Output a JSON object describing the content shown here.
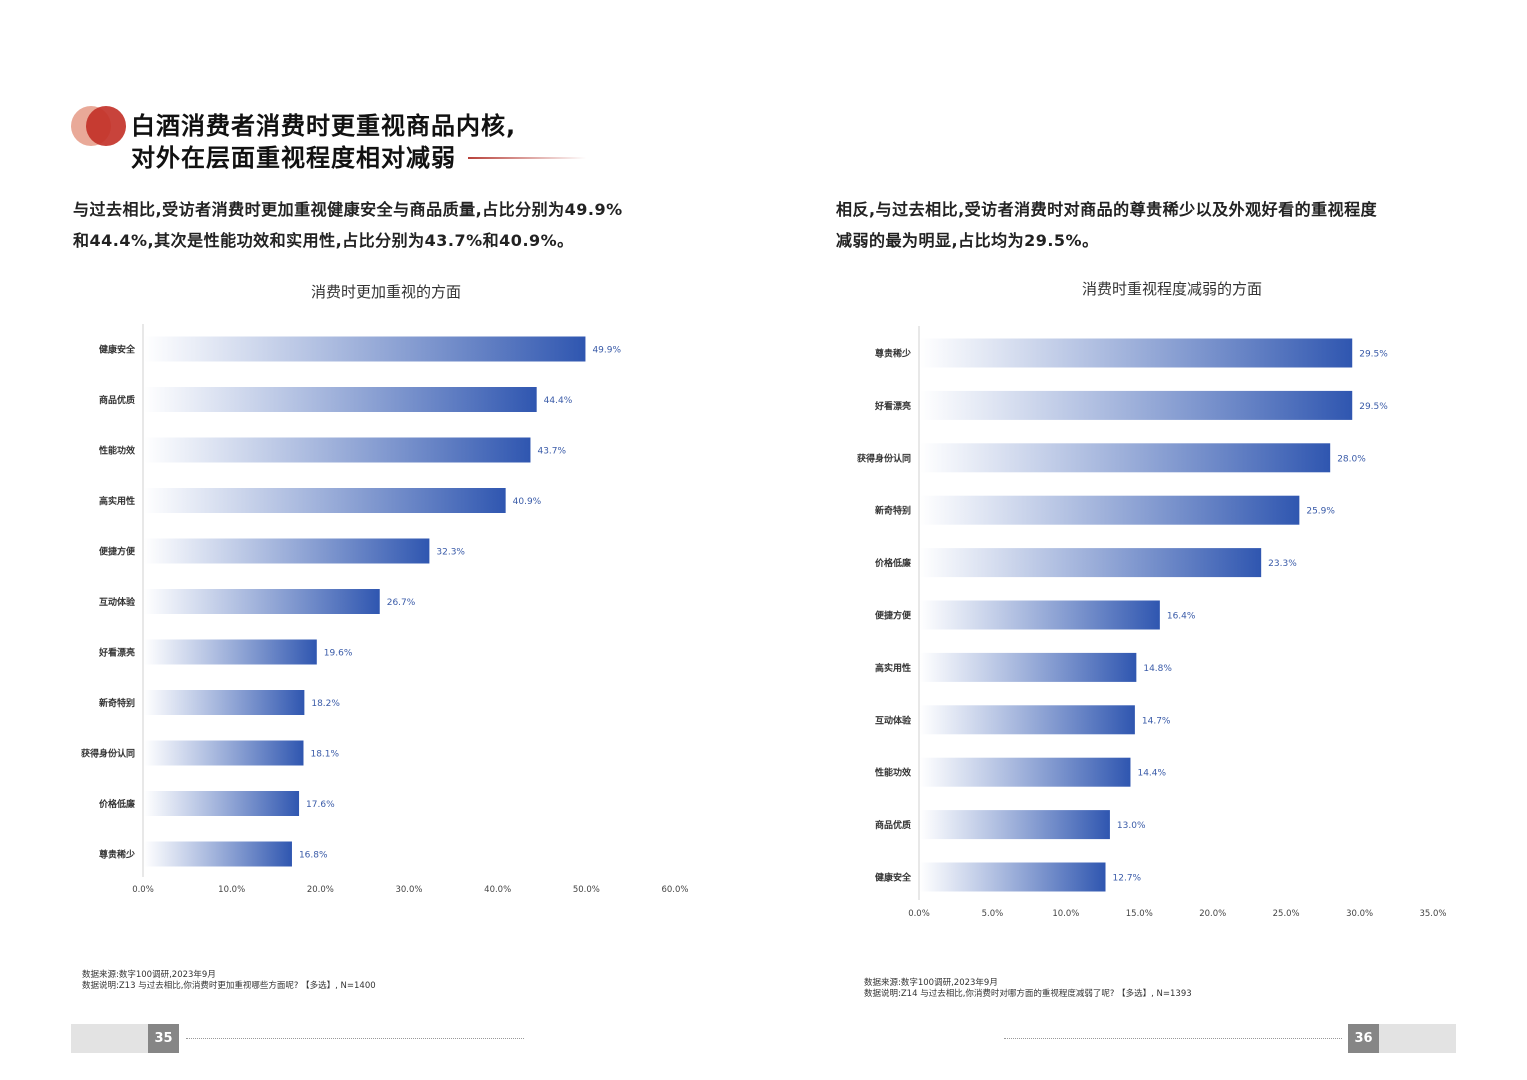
{
  "headline": {
    "line1": "白酒消费者消费时更重视商品内核,",
    "line2": "对外在层面重视程度相对减弱"
  },
  "left": {
    "intro_line1": "与过去相比,受访者消费时更加重视健康安全与商品质量,占比分别为49.9%",
    "intro_line2": "和44.4%,其次是性能功效和实用性,占比分别为43.7%和40.9%。",
    "source_line1": "数据来源:数字100调研,2023年9月",
    "source_line2": "数据说明:Z13 与过去相比,你消费时更加重视哪些方面呢? 【多选】, N=1400",
    "page_number": "35"
  },
  "right": {
    "intro_line1": "相反,与过去相比,受访者消费时对商品的尊贵稀少以及外观好看的重视程度",
    "intro_line2": "减弱的最为明显,占比均为29.5%。",
    "source_line1": "数据来源:数字100调研,2023年9月",
    "source_line2": "数据说明:Z14 与过去相比,你消费时对哪方面的重视程度减弱了呢? 【多选】, N=1393",
    "page_number": "36"
  },
  "chart_data": [
    {
      "type": "bar",
      "orientation": "horizontal",
      "title": "消费时更加重视的方面",
      "categories": [
        "健康安全",
        "商品优质",
        "性能功效",
        "高实用性",
        "便捷方便",
        "互动体验",
        "好看漂亮",
        "新奇特别",
        "获得身份认同",
        "价格低廉",
        "尊贵稀少"
      ],
      "values": [
        49.9,
        44.4,
        43.7,
        40.9,
        32.3,
        26.7,
        19.6,
        18.2,
        18.1,
        17.6,
        16.8
      ],
      "value_labels": [
        "49.9%",
        "44.4%",
        "43.7%",
        "40.9%",
        "32.3%",
        "26.7%",
        "19.6%",
        "18.2%",
        "18.1%",
        "17.6%",
        "16.8%"
      ],
      "xlim": [
        0,
        60
      ],
      "xticks": [
        "0.0%",
        "10.0%",
        "20.0%",
        "30.0%",
        "40.0%",
        "50.0%",
        "60.0%"
      ],
      "unit": "%",
      "grid": false,
      "colors": {
        "bar_start": "#ffffff",
        "bar_end": "#2f56b0",
        "label": "#3a5ba8"
      }
    },
    {
      "type": "bar",
      "orientation": "horizontal",
      "title": "消费时重视程度减弱的方面",
      "categories": [
        "尊贵稀少",
        "好看漂亮",
        "获得身份认同",
        "新奇特别",
        "价格低廉",
        "便捷方便",
        "高实用性",
        "互动体验",
        "性能功效",
        "商品优质",
        "健康安全"
      ],
      "values": [
        29.5,
        29.5,
        28.0,
        25.9,
        23.3,
        16.4,
        14.8,
        14.7,
        14.4,
        13.0,
        12.7
      ],
      "value_labels": [
        "29.5%",
        "29.5%",
        "28.0%",
        "25.9%",
        "23.3%",
        "16.4%",
        "14.8%",
        "14.7%",
        "14.4%",
        "13.0%",
        "12.7%"
      ],
      "xlim": [
        0,
        35
      ],
      "xticks": [
        "0.0%",
        "5.0%",
        "10.0%",
        "15.0%",
        "20.0%",
        "25.0%",
        "30.0%",
        "35.0%"
      ],
      "unit": "%",
      "grid": false,
      "colors": {
        "bar_start": "#ffffff",
        "bar_end": "#2f56b0",
        "label": "#3a5ba8"
      }
    }
  ]
}
